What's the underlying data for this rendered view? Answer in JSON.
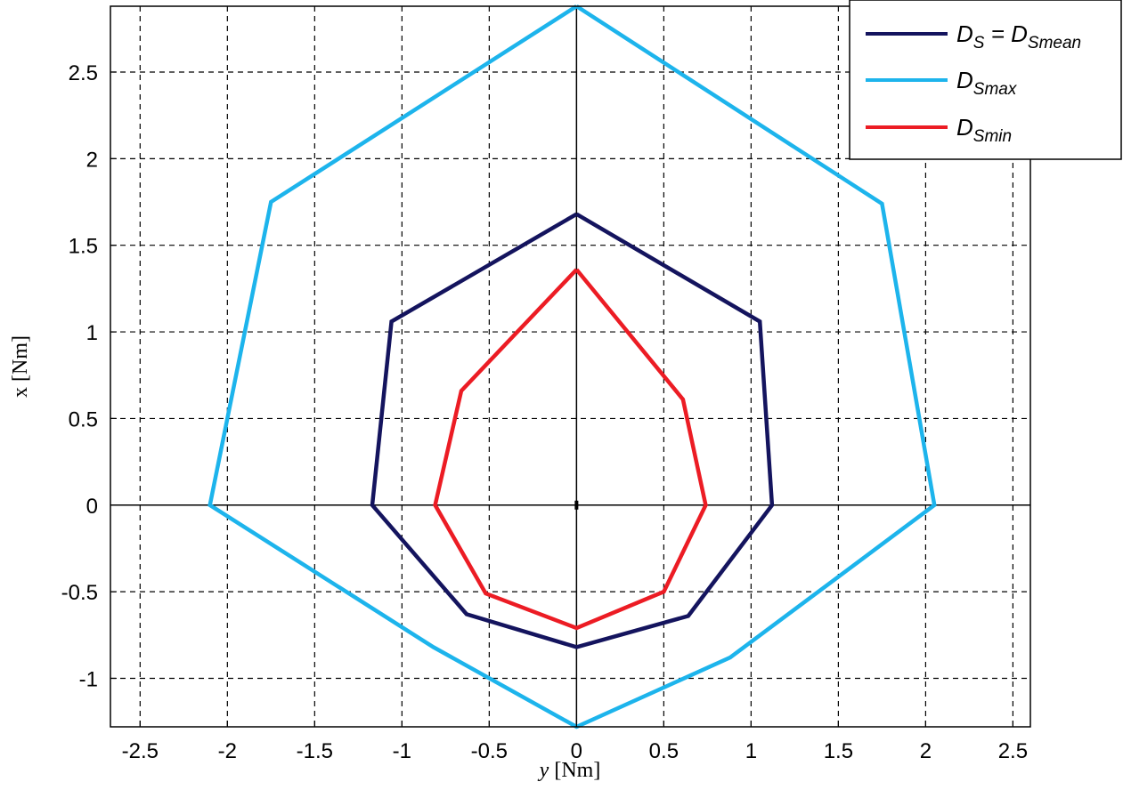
{
  "chart_data": {
    "type": "line",
    "xlabel": {
      "var": "y",
      "unit": " [Nm]"
    },
    "ylabel": "x [Nm]",
    "xlim": [
      -2.67,
      2.6
    ],
    "ylim": [
      -1.28,
      2.88
    ],
    "xticks": [
      -2.5,
      -2,
      -1.5,
      -1,
      -0.5,
      0,
      0.5,
      1,
      1.5,
      2,
      2.5
    ],
    "yticks": [
      -1,
      -0.5,
      0,
      0.5,
      1,
      1.5,
      2,
      2.5
    ],
    "xtick_labels": [
      "-2.5",
      "-2",
      "-1.5",
      "-1",
      "-0.5",
      "0",
      "0.5",
      "1",
      "1.5",
      "2",
      "2.5"
    ],
    "ytick_labels": [
      "-1",
      "-0.5",
      "0",
      "0.5",
      "1",
      "1.5",
      "2",
      "2.5"
    ],
    "grid": true,
    "legend_position": "top-right",
    "series": [
      {
        "key": "smean",
        "name": "D_S = D_Smean",
        "legend_main": "D",
        "legend_sub": "S",
        "legend_eq": " = D",
        "legend_sub2": "Smean",
        "color": "#14145e",
        "x": [
          0,
          1.05,
          1.12,
          0.64,
          0,
          -0.63,
          -1.17,
          -1.06,
          0
        ],
        "y": [
          1.68,
          1.06,
          0,
          -0.64,
          -0.82,
          -0.63,
          0,
          1.06,
          1.68
        ]
      },
      {
        "key": "smax",
        "name": "D_Smax",
        "legend_main": "D",
        "legend_sub": "Smax",
        "color": "#1db4ec",
        "x": [
          0,
          1.75,
          2.05,
          0.88,
          0,
          -0.82,
          -2.1,
          -1.75,
          0
        ],
        "y": [
          2.88,
          1.74,
          0,
          -0.88,
          -1.28,
          -0.82,
          0,
          1.75,
          2.88
        ]
      },
      {
        "key": "smin",
        "name": "D_Smin",
        "legend_main": "D",
        "legend_sub": "Smin",
        "color": "#ec1c24",
        "x": [
          0,
          0.61,
          0.74,
          0.5,
          0,
          -0.52,
          -0.81,
          -0.66,
          0
        ],
        "y": [
          1.36,
          0.61,
          0,
          -0.5,
          -0.71,
          -0.51,
          0,
          0.66,
          1.36
        ]
      }
    ]
  }
}
